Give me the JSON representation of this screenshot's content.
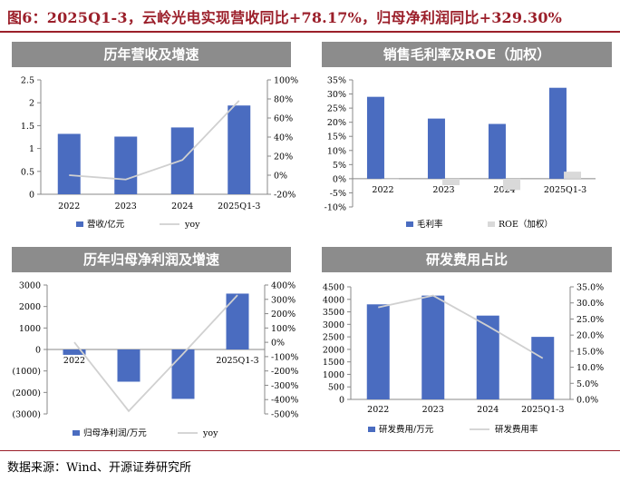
{
  "title": "图6：2025Q1-3，云岭光电实现营收同比+78.17%，归母净利润同比+329.30%",
  "source": "数据来源：Wind、开源证券研究所",
  "colors": {
    "bar": "#4a6cc0",
    "line": "#d0d0d0",
    "negbar": "#d9d9d9",
    "title": "#9b1f2a",
    "header": "#8c8c8c",
    "negtext": "#c00000"
  },
  "chart_data": [
    {
      "id": "revenue",
      "type": "bar",
      "title": "历年营收及增速",
      "categories": [
        "2022",
        "2023",
        "2024",
        "2025Q1-3"
      ],
      "series": [
        {
          "name": "营收/亿元",
          "type": "bar",
          "axis": "left",
          "values": [
            1.32,
            1.26,
            1.46,
            1.94
          ]
        },
        {
          "name": "yoy",
          "type": "line",
          "axis": "right",
          "values": [
            0.0,
            -4.5,
            16.0,
            78.17
          ]
        }
      ],
      "yLeft": {
        "min": 0,
        "max": 2.5,
        "ticks": [
          0,
          0.5,
          1,
          1.5,
          2,
          2.5
        ],
        "labels": [
          "0",
          "0.5",
          "1",
          "1.5",
          "2",
          "2.5"
        ]
      },
      "yRight": {
        "min": -20,
        "max": 100,
        "ticks": [
          -20,
          0,
          20,
          40,
          60,
          80,
          100
        ],
        "labels": [
          "-20%",
          "0%",
          "20%",
          "40%",
          "60%",
          "80%",
          "100%"
        ]
      },
      "legend": [
        "营收/亿元",
        "yoy"
      ]
    },
    {
      "id": "margin",
      "type": "bar",
      "title": "销售毛利率及ROE（加权）",
      "categories": [
        "2022",
        "2023",
        "2024",
        "2025Q1-3"
      ],
      "series": [
        {
          "name": "毛利率",
          "type": "bar",
          "values": [
            29.0,
            21.3,
            19.4,
            32.2
          ]
        },
        {
          "name": "ROE（加权）",
          "type": "bar",
          "values": [
            -0.3,
            -2.3,
            -4.0,
            2.5
          ]
        }
      ],
      "yLeft": {
        "min": -10,
        "max": 35,
        "ticks": [
          -10,
          -5,
          0,
          5,
          10,
          15,
          20,
          25,
          30,
          35
        ],
        "labels": [
          "-10%",
          "-5%",
          "0%",
          "5%",
          "10%",
          "15%",
          "20%",
          "25%",
          "30%",
          "35%"
        ]
      },
      "legend": [
        "毛利率",
        "ROE（加权）"
      ]
    },
    {
      "id": "profit",
      "type": "bar",
      "title": "历年归母净利润及增速",
      "categories": [
        "2022",
        "2023",
        "2024",
        "2025Q1-3"
      ],
      "series": [
        {
          "name": "归母净利润/万元",
          "type": "bar",
          "axis": "left",
          "values": [
            -250,
            -1500,
            -2300,
            2600
          ]
        },
        {
          "name": "yoy",
          "type": "line",
          "axis": "right",
          "values": [
            0,
            -480,
            -80,
            329.3
          ]
        }
      ],
      "yLeft": {
        "min": -3000,
        "max": 3000,
        "ticks": [
          -3000,
          -2000,
          -1000,
          0,
          1000,
          2000,
          3000
        ],
        "labels": [
          "(3000)",
          "(2000)",
          "(1000)",
          "0",
          "1000",
          "2000",
          "3000"
        ]
      },
      "yRight": {
        "min": -500,
        "max": 400,
        "ticks": [
          -500,
          -400,
          -300,
          -200,
          -100,
          0,
          100,
          200,
          300,
          400
        ],
        "labels": [
          "-500%",
          "-400%",
          "-300%",
          "-200%",
          "-100%",
          "0%",
          "100%",
          "200%",
          "300%",
          "400%"
        ]
      },
      "legend": [
        "归母净利润/万元",
        "yoy"
      ]
    },
    {
      "id": "rd",
      "type": "bar",
      "title": "研发费用占比",
      "categories": [
        "2022",
        "2023",
        "2024",
        "2025Q1-3"
      ],
      "series": [
        {
          "name": "研发费用/万元",
          "type": "bar",
          "axis": "left",
          "values": [
            3800,
            4150,
            3350,
            2500
          ]
        },
        {
          "name": "研发费用率",
          "type": "line",
          "axis": "right",
          "values": [
            28.6,
            32.3,
            22.8,
            12.8
          ]
        }
      ],
      "yLeft": {
        "min": 0,
        "max": 4500,
        "ticks": [
          0,
          500,
          1000,
          1500,
          2000,
          2500,
          3000,
          3500,
          4000,
          4500
        ],
        "labels": [
          "0",
          "500",
          "1000",
          "1500",
          "2000",
          "2500",
          "3000",
          "3500",
          "4000",
          "4500"
        ]
      },
      "yRight": {
        "min": 0,
        "max": 35,
        "ticks": [
          0,
          5,
          10,
          15,
          20,
          25,
          30,
          35
        ],
        "labels": [
          "0.0%",
          "5.0%",
          "10.0%",
          "15.0%",
          "20.0%",
          "25.0%",
          "30.0%",
          "35.0%"
        ]
      },
      "legend": [
        "研发费用/万元",
        "研发费用率"
      ]
    }
  ]
}
